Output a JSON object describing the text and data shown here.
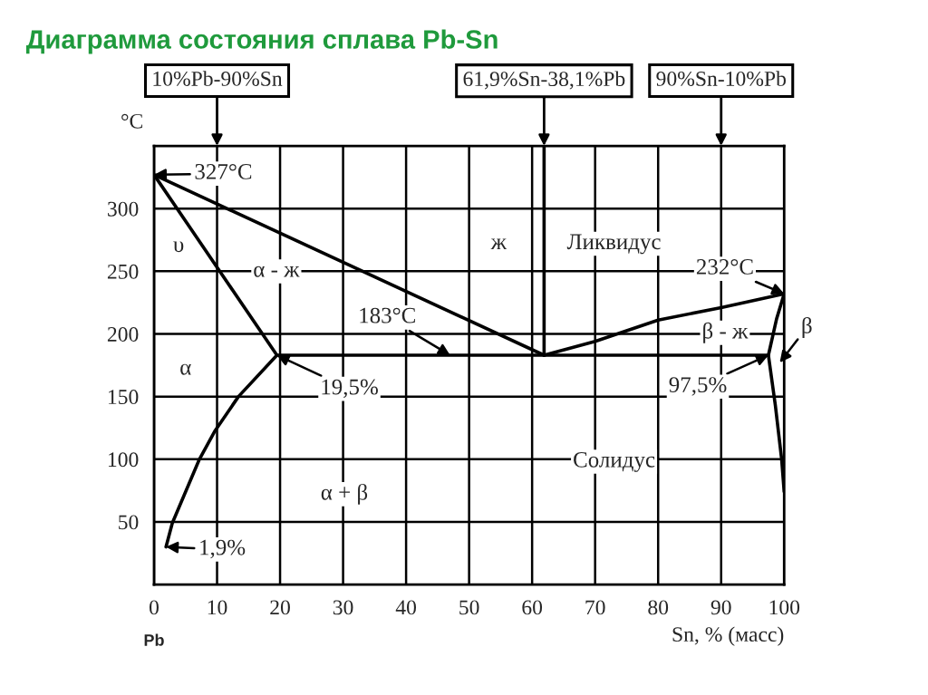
{
  "chart_data": {
    "type": "line",
    "title": "Диаграмма состояния сплава Pb-Sn",
    "ylabel": "°C",
    "xlabel": "Sn, % (масс)",
    "xlim": [
      0,
      100
    ],
    "xticks": [
      0,
      10,
      20,
      30,
      40,
      50,
      60,
      70,
      80,
      90,
      100
    ],
    "ylim": [
      0,
      350
    ],
    "yticks": [
      50,
      100,
      150,
      200,
      250,
      300
    ],
    "grid": true,
    "legend": false,
    "marker": "none",
    "line_style": "solid",
    "series": [
      {
        "color": "#000000",
        "x": [
          0,
          61.9
        ],
        "values": [
          327,
          183
        ]
      },
      {
        "color": "#000000",
        "x": [
          61.9,
          70,
          80,
          90,
          100
        ],
        "values": [
          183,
          194,
          211,
          221,
          232
        ]
      },
      {
        "color": "#000000",
        "x": [
          0,
          19.5,
          13.4,
          9.6,
          7.2,
          2.9,
          1.9
        ],
        "values": [
          327,
          183,
          150,
          122,
          100,
          49,
          30
        ]
      },
      {
        "color": "#000000",
        "x": [
          19.5,
          97.5
        ],
        "values": [
          183,
          183
        ]
      },
      {
        "color": "#000000",
        "x": [
          100,
          98.8,
          97.5,
          98.6,
          99.6,
          100
        ],
        "values": [
          232,
          212,
          183,
          143,
          100,
          74
        ]
      },
      {
        "color": "#000000",
        "x": [
          61.9,
          61.9
        ],
        "values": [
          183,
          350
        ]
      }
    ],
    "annotations": [
      "10%Pb-90%Sn",
      {
        "text": "61,9%Sn-38,1%Pb",
        "x": 61.9,
        "y": 350
      },
      "90%Sn-10%Pb",
      {
        "text": "327°C",
        "x": 0,
        "y": 327
      },
      {
        "text": "183°C",
        "x": 47,
        "y": 183
      },
      {
        "text": "19,5%",
        "x": 19.5,
        "y": 183
      },
      {
        "text": "1,9%",
        "x": 1.9,
        "y": 30
      },
      {
        "text": "232°C",
        "x": 100,
        "y": 232
      },
      {
        "text": "97,5%",
        "x": 97.5,
        "y": 183
      },
      "β",
      "υ",
      "α - ж",
      "ж",
      "Ликвидус",
      "β - ж",
      "α",
      "α + β",
      "Солидус",
      "Pb"
    ]
  }
}
